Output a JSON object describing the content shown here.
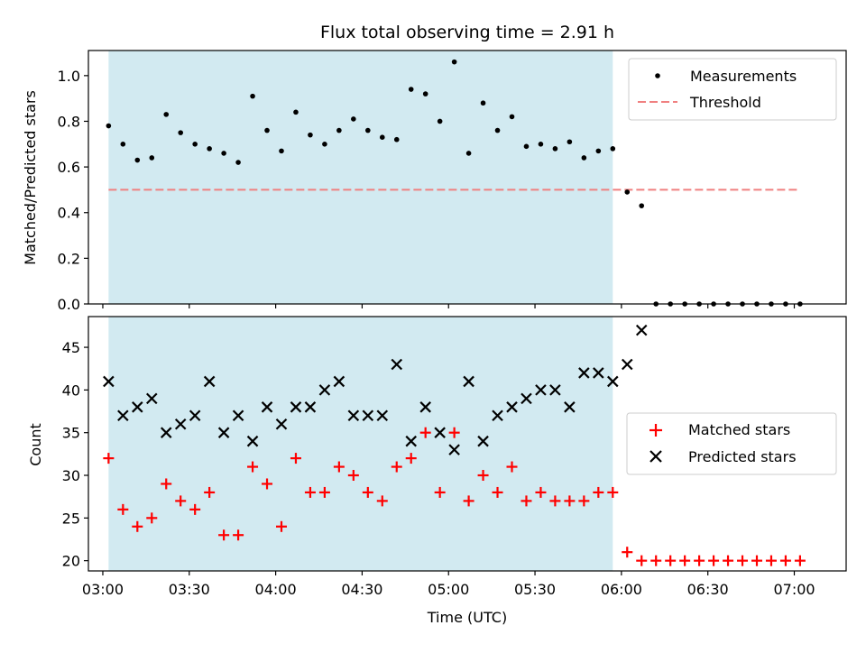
{
  "chart_data": {
    "type": "scatter",
    "title": "Flux total observing time = 2.91 h",
    "xlabel": "Time (UTC)",
    "x_ticks": [
      "03:00",
      "03:30",
      "04:00",
      "04:30",
      "05:00",
      "05:30",
      "06:00",
      "06:30",
      "07:00"
    ],
    "x_tick_minutes": [
      180,
      210,
      240,
      270,
      300,
      330,
      360,
      390,
      420
    ],
    "xlim_minutes": [
      175,
      438
    ],
    "x_minutes": [
      182,
      187,
      192,
      197,
      202,
      207,
      212,
      217,
      222,
      227,
      232,
      237,
      242,
      247,
      252,
      257,
      262,
      267,
      272,
      277,
      282,
      287,
      292,
      297,
      302,
      307,
      312,
      317,
      322,
      327,
      332,
      337,
      342,
      347,
      352,
      357,
      362,
      367,
      372,
      377,
      382,
      387,
      392,
      397,
      402,
      407,
      412,
      417,
      422
    ],
    "observing_window_minutes": [
      182,
      357
    ],
    "top": {
      "ylabel": "Matched/Predicted stars",
      "ylim": [
        0,
        1.11
      ],
      "yticks": [
        "0.0",
        "0.2",
        "0.4",
        "0.6",
        "0.8",
        "1.0"
      ],
      "ytick_values": [
        0,
        0.2,
        0.4,
        0.6,
        0.8,
        1.0
      ],
      "threshold": 0.5,
      "threshold_x_minutes": [
        182,
        422
      ],
      "threshold_color": "#f08080",
      "series": [
        {
          "name": "Measurements",
          "color": "#000000",
          "values": [
            0.78,
            0.7,
            0.63,
            0.64,
            0.83,
            0.75,
            0.7,
            0.68,
            0.66,
            0.62,
            0.91,
            0.76,
            0.67,
            0.84,
            0.74,
            0.7,
            0.76,
            0.81,
            0.76,
            0.73,
            0.72,
            0.94,
            0.92,
            0.8,
            1.06,
            0.66,
            0.88,
            0.76,
            0.82,
            0.69,
            0.7,
            0.68,
            0.71,
            0.64,
            0.67,
            0.68,
            0.49,
            0.43,
            0,
            0,
            0,
            0,
            0,
            0,
            0,
            0,
            0,
            0,
            0
          ]
        },
        {
          "name": "Threshold"
        }
      ]
    },
    "bottom": {
      "ylabel": "Count",
      "ylim": [
        18.8,
        48.6
      ],
      "yticks": [
        "20",
        "25",
        "30",
        "35",
        "40",
        "45"
      ],
      "ytick_values": [
        20,
        25,
        30,
        35,
        40,
        45
      ],
      "series": [
        {
          "name": "Matched stars",
          "color": "#ff0000",
          "values": [
            32,
            26,
            24,
            25,
            29,
            27,
            26,
            28,
            23,
            23,
            31,
            29,
            24,
            32,
            28,
            28,
            31,
            30,
            28,
            27,
            31,
            32,
            35,
            28,
            35,
            27,
            30,
            28,
            31,
            27,
            28,
            27,
            27,
            27,
            28,
            28,
            21,
            20,
            20,
            20,
            20,
            20,
            20,
            20,
            20,
            20,
            20,
            20,
            20
          ]
        },
        {
          "name": "Predicted stars",
          "color": "#000000",
          "values": [
            41,
            37,
            38,
            39,
            35,
            36,
            37,
            41,
            35,
            37,
            34,
            38,
            36,
            38,
            38,
            40,
            41,
            37,
            37,
            37,
            43,
            34,
            38,
            35,
            33,
            41,
            34,
            37,
            38,
            39,
            40,
            40,
            38,
            42,
            42,
            41,
            43,
            47
          ]
        }
      ]
    },
    "shade_color": "#add8e6",
    "legend_top": "top-right",
    "legend_bottom": "center-right",
    "grid": false
  }
}
